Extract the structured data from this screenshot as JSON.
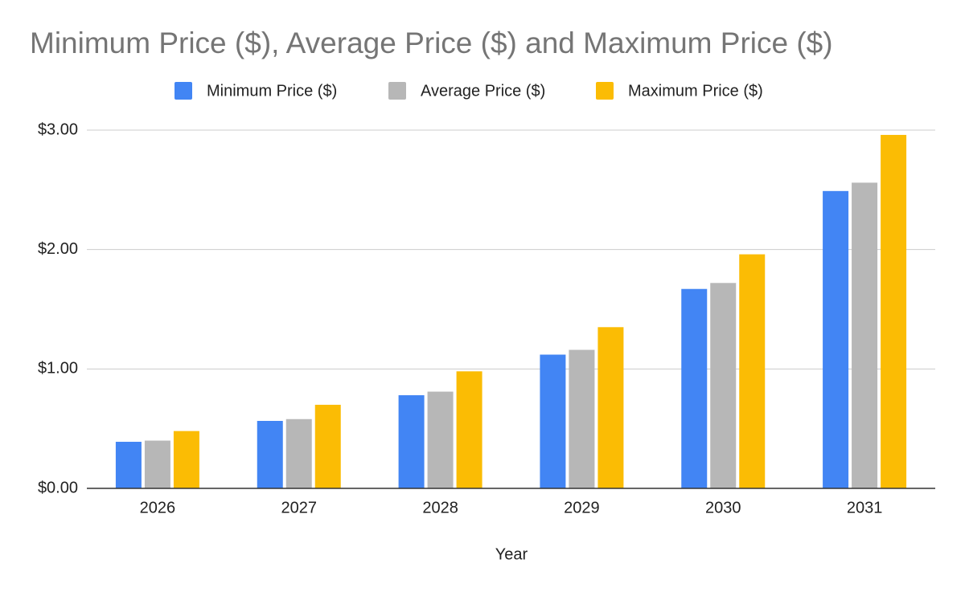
{
  "chart_data": {
    "type": "bar",
    "title": "Minimum Price ($), Average Price ($) and Maximum Price ($)",
    "x_label": "Year",
    "categories": [
      "2026",
      "2027",
      "2028",
      "2029",
      "2030",
      "2031"
    ],
    "series": [
      {
        "name": "Minimum Price ($)",
        "color": "#4285f4",
        "values": [
          0.39,
          0.565,
          0.78,
          1.12,
          1.67,
          2.49
        ]
      },
      {
        "name": "Average Price ($)",
        "color": "#b7b7b7",
        "values": [
          0.4,
          0.58,
          0.81,
          1.16,
          1.72,
          2.56
        ]
      },
      {
        "name": "Maximum Price ($)",
        "color": "#fbbc04",
        "values": [
          0.48,
          0.7,
          0.98,
          1.35,
          1.96,
          2.96
        ]
      }
    ],
    "ylim": [
      0,
      3
    ],
    "yticks": [
      {
        "value": 0,
        "label": "$0.00"
      },
      {
        "value": 1,
        "label": "$1.00"
      },
      {
        "value": 2,
        "label": "$2.00"
      },
      {
        "value": 3,
        "label": "$3.00"
      }
    ],
    "grid": true,
    "legend": "top"
  }
}
